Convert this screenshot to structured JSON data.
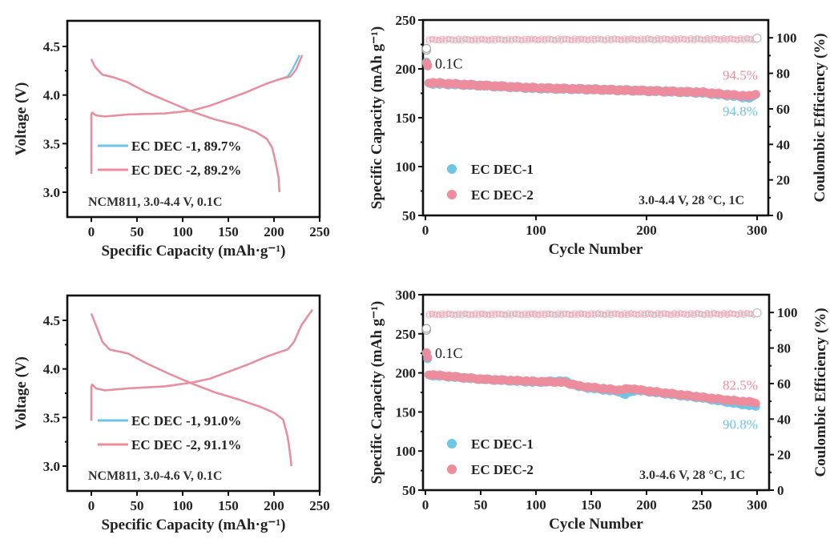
{
  "colors": {
    "ec_dec_1": "#6ec6e6",
    "ec_dec_2": "#ee8c9c",
    "ce_marker": "#e8a7b3"
  },
  "chart_data": [
    {
      "id": "voltage-profile-4.4",
      "type": "line",
      "title": "",
      "xlabel": "Specific Capacity (mAh·g⁻¹)",
      "ylabel": "Voltage (V)",
      "xlim": [
        -20,
        250
      ],
      "ylim": [
        2.74,
        4.77
      ],
      "xticks": [
        "0",
        "50",
        "100",
        "150",
        "200",
        "250"
      ],
      "xtick_values": [
        0,
        50,
        100,
        150,
        200,
        250
      ],
      "yticks": [
        "3.0",
        "3.5",
        "4.0",
        "4.5"
      ],
      "ytick_values": [
        3.0,
        3.5,
        4.0,
        4.5
      ],
      "annotation": "NCM811, 3.0-4.4 V, 0.1C",
      "legend_position": "center-left",
      "series": [
        {
          "name": "EC DEC -1, 89.7%",
          "color_key": "ec_dec_1",
          "charge": [
            [
              0,
              3.19
            ],
            [
              0,
              3.8
            ],
            [
              1,
              3.82
            ],
            [
              5,
              3.79
            ],
            [
              15,
              3.78
            ],
            [
              40,
              3.8
            ],
            [
              80,
              3.81
            ],
            [
              110,
              3.84
            ],
            [
              130,
              3.89
            ],
            [
              150,
              3.96
            ],
            [
              170,
              4.03
            ],
            [
              190,
              4.11
            ],
            [
              205,
              4.16
            ],
            [
              215,
              4.19
            ],
            [
              220,
              4.26
            ],
            [
              228,
              4.41
            ]
          ],
          "discharge": [
            [
              0,
              4.37
            ],
            [
              4,
              4.29
            ],
            [
              12,
              4.21
            ],
            [
              25,
              4.18
            ],
            [
              40,
              4.13
            ],
            [
              60,
              4.03
            ],
            [
              85,
              3.93
            ],
            [
              110,
              3.83
            ],
            [
              135,
              3.75
            ],
            [
              160,
              3.69
            ],
            [
              180,
              3.62
            ],
            [
              192,
              3.55
            ],
            [
              198,
              3.46
            ],
            [
              202,
              3.3
            ],
            [
              205,
              3.15
            ],
            [
              206,
              3.0
            ]
          ]
        },
        {
          "name": "EC DEC -2, 89.2%",
          "color_key": "ec_dec_2",
          "charge": [
            [
              0,
              3.19
            ],
            [
              0,
              3.8
            ],
            [
              1,
              3.82
            ],
            [
              5,
              3.79
            ],
            [
              15,
              3.78
            ],
            [
              40,
              3.8
            ],
            [
              80,
              3.81
            ],
            [
              110,
              3.84
            ],
            [
              130,
              3.89
            ],
            [
              150,
              3.96
            ],
            [
              170,
              4.03
            ],
            [
              190,
              4.11
            ],
            [
              205,
              4.16
            ],
            [
              218,
              4.19
            ],
            [
              224,
              4.26
            ],
            [
              231,
              4.41
            ]
          ],
          "discharge": [
            [
              0,
              4.37
            ],
            [
              4,
              4.29
            ],
            [
              12,
              4.21
            ],
            [
              25,
              4.18
            ],
            [
              40,
              4.13
            ],
            [
              60,
              4.03
            ],
            [
              85,
              3.93
            ],
            [
              110,
              3.83
            ],
            [
              135,
              3.75
            ],
            [
              160,
              3.69
            ],
            [
              180,
              3.62
            ],
            [
              192,
              3.55
            ],
            [
              198,
              3.46
            ],
            [
              202,
              3.3
            ],
            [
              205,
              3.15
            ],
            [
              206,
              3.0
            ]
          ]
        }
      ]
    },
    {
      "id": "cycling-4.4",
      "type": "scatter",
      "title": "",
      "xlabel": "Cycle Number",
      "ylabel": "Specific Capacity (mAh g⁻¹)",
      "y2label": "Coulombic Efficiency (%)",
      "xlim": [
        -4,
        306
      ],
      "ylim": [
        50,
        250
      ],
      "y2lim": [
        0,
        110
      ],
      "xticks": [
        "0",
        "100",
        "200",
        "300"
      ],
      "xtick_values": [
        0,
        100,
        200,
        300
      ],
      "yticks": [
        "50",
        "100",
        "150",
        "200",
        "250"
      ],
      "ytick_values": [
        50,
        100,
        150,
        200,
        250
      ],
      "y2ticks": [
        "0",
        "20",
        "40",
        "60",
        "80",
        "100"
      ],
      "y2tick_values": [
        0,
        20,
        40,
        60,
        80,
        100
      ],
      "annotation": "3.0-4.4 V, 28 °C, 1C",
      "rate_label": "0.1C",
      "legend_position": "bottom-left",
      "series": [
        {
          "name": "EC DEC-1",
          "color_key": "ec_dec_1",
          "initial_capacity": [
            [
              1,
              207
            ],
            [
              2,
              204
            ]
          ],
          "capacity": [
            [
              3,
              185
            ],
            [
              50,
              183
            ],
            [
              100,
              180
            ],
            [
              150,
              179
            ],
            [
              200,
              177.5
            ],
            [
              250,
              175.5
            ],
            [
              280,
              172
            ],
            [
              295,
              170
            ],
            [
              300,
              175
            ]
          ],
          "retention_label": "94.8%",
          "ce": [
            [
              1,
              93
            ],
            [
              3,
              99.5
            ],
            [
              300,
              99.8
            ]
          ]
        },
        {
          "name": "EC DEC-2",
          "color_key": "ec_dec_2",
          "initial_capacity": [
            [
              1,
              206
            ],
            [
              2,
              203
            ]
          ],
          "capacity": [
            [
              3,
              186
            ],
            [
              50,
              183
            ],
            [
              100,
              180.5
            ],
            [
              150,
              179
            ],
            [
              200,
              177.5
            ],
            [
              250,
              176
            ],
            [
              280,
              173
            ],
            [
              295,
              172
            ],
            [
              300,
              176
            ]
          ],
          "retention_label": "94.5%",
          "ce": [
            [
              1,
              94
            ],
            [
              3,
              99.5
            ],
            [
              300,
              99.8
            ]
          ]
        }
      ]
    },
    {
      "id": "voltage-profile-4.6",
      "type": "line",
      "title": "",
      "xlabel": "Specific Capacity (mAh·g⁻¹)",
      "ylabel": "Voltage (V)",
      "xlim": [
        -20,
        250
      ],
      "ylim": [
        2.73,
        4.76
      ],
      "xticks": [
        "0",
        "50",
        "100",
        "150",
        "200",
        "250"
      ],
      "xtick_values": [
        0,
        50,
        100,
        150,
        200,
        250
      ],
      "yticks": [
        "3.0",
        "3.5",
        "4.0",
        "4.5"
      ],
      "ytick_values": [
        3.0,
        3.5,
        4.0,
        4.5
      ],
      "annotation": "NCM811, 3.0-4.6 V, 0.1C",
      "legend_position": "center-left",
      "series": [
        {
          "name": "EC DEC -1, 91.0%",
          "color_key": "ec_dec_1",
          "charge": [
            [
              0,
              3.47
            ],
            [
              0,
              3.82
            ],
            [
              1,
              3.84
            ],
            [
              5,
              3.8
            ],
            [
              15,
              3.78
            ],
            [
              40,
              3.8
            ],
            [
              80,
              3.82
            ],
            [
              110,
              3.86
            ],
            [
              130,
              3.9
            ],
            [
              150,
              3.97
            ],
            [
              170,
              4.04
            ],
            [
              190,
              4.12
            ],
            [
              205,
              4.17
            ],
            [
              215,
              4.2
            ],
            [
              222,
              4.28
            ],
            [
              230,
              4.45
            ],
            [
              242,
              4.61
            ]
          ],
          "discharge": [
            [
              0,
              4.57
            ],
            [
              5,
              4.45
            ],
            [
              12,
              4.28
            ],
            [
              20,
              4.2
            ],
            [
              40,
              4.16
            ],
            [
              60,
              4.06
            ],
            [
              85,
              3.95
            ],
            [
              110,
              3.85
            ],
            [
              135,
              3.76
            ],
            [
              160,
              3.69
            ],
            [
              185,
              3.61
            ],
            [
              200,
              3.55
            ],
            [
              210,
              3.48
            ],
            [
              215,
              3.3
            ],
            [
              218,
              3.1
            ],
            [
              219,
              3.0
            ]
          ]
        },
        {
          "name": "EC DEC -2, 91.1%",
          "color_key": "ec_dec_2",
          "charge": [
            [
              0,
              3.47
            ],
            [
              0,
              3.82
            ],
            [
              1,
              3.84
            ],
            [
              5,
              3.8
            ],
            [
              15,
              3.78
            ],
            [
              40,
              3.8
            ],
            [
              80,
              3.82
            ],
            [
              110,
              3.86
            ],
            [
              130,
              3.9
            ],
            [
              150,
              3.97
            ],
            [
              170,
              4.04
            ],
            [
              190,
              4.12
            ],
            [
              205,
              4.17
            ],
            [
              215,
              4.2
            ],
            [
              222,
              4.28
            ],
            [
              230,
              4.45
            ],
            [
              242,
              4.61
            ]
          ],
          "discharge": [
            [
              0,
              4.57
            ],
            [
              5,
              4.45
            ],
            [
              12,
              4.28
            ],
            [
              20,
              4.2
            ],
            [
              40,
              4.16
            ],
            [
              60,
              4.06
            ],
            [
              85,
              3.95
            ],
            [
              110,
              3.85
            ],
            [
              135,
              3.76
            ],
            [
              160,
              3.69
            ],
            [
              185,
              3.61
            ],
            [
              200,
              3.55
            ],
            [
              210,
              3.48
            ],
            [
              215,
              3.3
            ],
            [
              218,
              3.1
            ],
            [
              219,
              3.0
            ]
          ]
        }
      ]
    },
    {
      "id": "cycling-4.6",
      "type": "scatter",
      "title": "",
      "xlabel": "Cycle Number",
      "ylabel": "Specific Capacity (mAh g⁻¹)",
      "y2label": "Coulombic Efficiency (%)",
      "xlim": [
        -4,
        306
      ],
      "ylim": [
        50,
        300
      ],
      "y2lim": [
        0,
        110
      ],
      "xticks": [
        "0",
        "50",
        "100",
        "150",
        "200",
        "250",
        "300"
      ],
      "xtick_values": [
        0,
        50,
        100,
        150,
        200,
        250,
        300
      ],
      "yticks": [
        "50",
        "100",
        "150",
        "200",
        "250",
        "300"
      ],
      "ytick_values": [
        50,
        100,
        150,
        200,
        250,
        300
      ],
      "y2ticks": [
        "0",
        "20",
        "40",
        "60",
        "80",
        "100"
      ],
      "y2tick_values": [
        0,
        20,
        40,
        60,
        80,
        100
      ],
      "annotation": "3.0-4.6 V, 28 °C, 1C",
      "rate_label": "0.1C",
      "legend_position": "bottom-left",
      "series": [
        {
          "name": "EC DEC-1",
          "color_key": "ec_dec_1",
          "initial_capacity": [
            [
              1,
              225
            ],
            [
              2,
              218
            ]
          ],
          "capacity": [
            [
              3,
              197
            ],
            [
              50,
              192
            ],
            [
              100,
              188
            ],
            [
              125,
              190
            ],
            [
              140,
              182
            ],
            [
              175,
              176
            ],
            [
              180,
              172
            ],
            [
              190,
              178
            ],
            [
              225,
              172
            ],
            [
              250,
              168
            ],
            [
              275,
              162
            ],
            [
              300,
              157
            ]
          ],
          "retention_label": "90.8%",
          "ce": [
            [
              1,
              90
            ],
            [
              3,
              99.5
            ],
            [
              300,
              99.8
            ]
          ]
        },
        {
          "name": "EC DEC-2",
          "color_key": "ec_dec_2",
          "initial_capacity": [
            [
              1,
              226
            ],
            [
              2,
              220
            ]
          ],
          "capacity": [
            [
              3,
              198
            ],
            [
              50,
              192
            ],
            [
              100,
              189
            ],
            [
              125,
              188
            ],
            [
              140,
              183
            ],
            [
              175,
              178
            ],
            [
              185,
              180
            ],
            [
              200,
              177
            ],
            [
              225,
              173
            ],
            [
              250,
              169
            ],
            [
              275,
              165
            ],
            [
              300,
              162
            ]
          ],
          "retention_label": "82.5%",
          "ce": [
            [
              1,
              91
            ],
            [
              3,
              99.5
            ],
            [
              300,
              99.8
            ]
          ]
        }
      ]
    }
  ]
}
